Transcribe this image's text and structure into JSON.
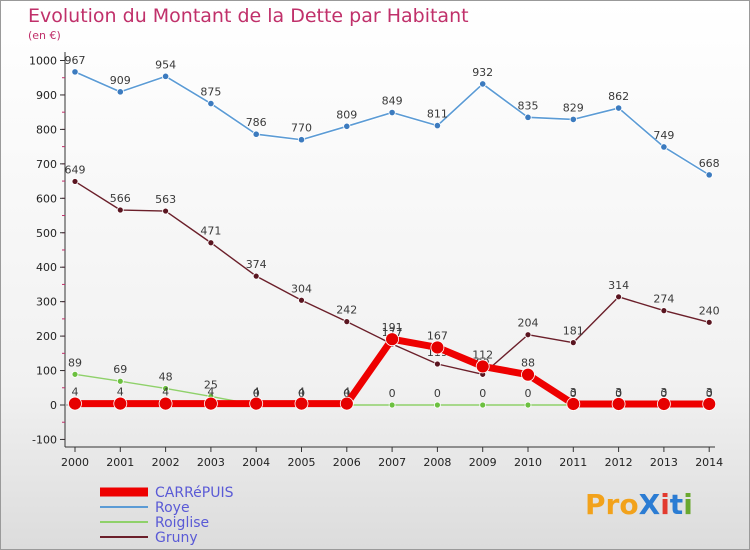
{
  "title": "Evolution du Montant de la Dette par Habitant",
  "subtitle": "(en €)",
  "logo": {
    "text": "ProXiti",
    "letters": [
      "P",
      "r",
      "o",
      "X",
      "i",
      "t",
      "i"
    ],
    "colors": [
      "#f2a21b",
      "#f2a21b",
      "#f2a21b",
      "#2b7cd3",
      "#e23a2e",
      "#2b7cd3",
      "#6aa82f"
    ]
  },
  "chart_data": {
    "type": "line",
    "x": [
      "2000",
      "2001",
      "2002",
      "2003",
      "2004",
      "2005",
      "2006",
      "2007",
      "2008",
      "2009",
      "2010",
      "2011",
      "2012",
      "2013",
      "2014"
    ],
    "ylim": [
      -100,
      1000
    ],
    "yticks": [
      "-100",
      "0",
      "100",
      "200",
      "300",
      "400",
      "500",
      "600",
      "700",
      "800",
      "900",
      "1000"
    ],
    "ytick_values": [
      -100,
      0,
      100,
      200,
      300,
      400,
      500,
      600,
      700,
      800,
      900,
      1000
    ],
    "grid": false,
    "legend_position": "bottom-left",
    "series": [
      {
        "name": "Roye",
        "color": "#5b9bd5",
        "marker": "#3c7bbf",
        "values": [
          967,
          909,
          954,
          875,
          786,
          770,
          809,
          849,
          811,
          932,
          835,
          829,
          862,
          749,
          668
        ],
        "labels": [
          "967",
          "909",
          "954",
          "875",
          "786",
          "770",
          "809",
          "849",
          "811",
          "932",
          "835",
          "829",
          "862",
          "749",
          "668"
        ]
      },
      {
        "name": "Gruny",
        "color": "#6b1f2a",
        "marker": "#5a1520",
        "values": [
          649,
          566,
          563,
          471,
          374,
          304,
          242,
          177,
          119,
          89,
          204,
          181,
          314,
          274,
          240
        ],
        "labels": [
          "649",
          "566",
          "563",
          "471",
          "374",
          "304",
          "242",
          "177",
          "119",
          "89",
          "204",
          "181",
          "314",
          "274",
          "240"
        ]
      },
      {
        "name": "Roiglise",
        "color": "#8fd16a",
        "marker": "#6cc040",
        "values": [
          89,
          69,
          48,
          25,
          0,
          0,
          0,
          0,
          0,
          0,
          0,
          0,
          0,
          0,
          0
        ],
        "labels": [
          "89",
          "69",
          "48",
          "25",
          "0",
          "0",
          "0",
          "0",
          "0",
          "0",
          "0",
          "0",
          "0",
          "0",
          "0"
        ]
      },
      {
        "name": "CARRéPUIS",
        "color": "#ee0000",
        "marker": "#e60000",
        "values": [
          4,
          4,
          4,
          4,
          4,
          4,
          4,
          191,
          167,
          112,
          88,
          3,
          3,
          3,
          3
        ],
        "labels": [
          "4",
          "4",
          "4",
          "4",
          "4",
          "4",
          "4",
          "191",
          "167",
          "112",
          "88",
          "3",
          "3",
          "3",
          "3"
        ]
      }
    ],
    "legend": [
      "CARRéPUIS",
      "Roye",
      "Roiglise",
      "Gruny"
    ]
  }
}
